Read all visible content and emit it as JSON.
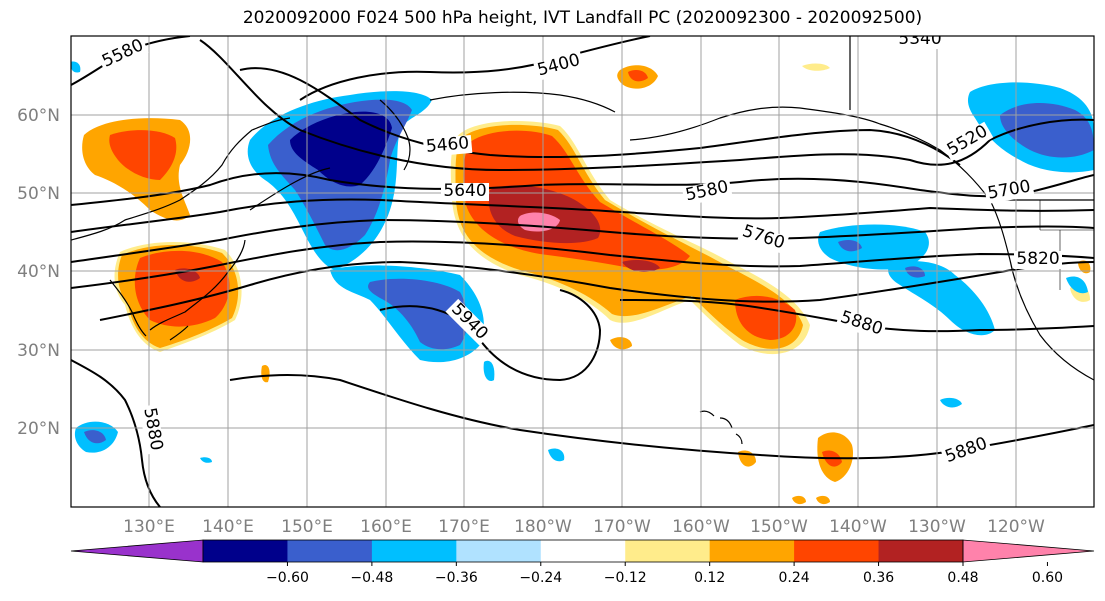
{
  "title": "2020092000 F024 500 hPa height, IVT Landfall PC (2020092300 - 2020092500)",
  "map": {
    "lat_labels": [
      "60°N",
      "50°N",
      "40°N",
      "30°N",
      "20°N"
    ],
    "lon_labels": [
      "130°E",
      "140°E",
      "150°E",
      "160°E",
      "170°E",
      "180°W",
      "170°W",
      "160°W",
      "150°W",
      "140°W",
      "130°W",
      "120°W"
    ],
    "contour_labels": [
      {
        "text": "5580",
        "note": "northwest"
      },
      {
        "text": "5400"
      },
      {
        "text": "5340"
      },
      {
        "text": "5460"
      },
      {
        "text": "5520"
      },
      {
        "text": "5640"
      },
      {
        "text": "5580",
        "note": "pacific"
      },
      {
        "text": "5700"
      },
      {
        "text": "5760"
      },
      {
        "text": "5820"
      },
      {
        "text": "5940"
      },
      {
        "text": "5880",
        "note": "east"
      },
      {
        "text": "5880",
        "note": "west"
      },
      {
        "text": "5880",
        "note": "south"
      }
    ]
  },
  "colorbar": {
    "tick_labels": [
      "−0.60",
      "−0.48",
      "−0.36",
      "−0.24",
      "−0.12",
      "0.12",
      "0.24",
      "0.36",
      "0.48",
      "0.60"
    ],
    "colors": [
      "#9932cc",
      "#00008b",
      "#3a5fcd",
      "#00bfff",
      "#b0e2ff",
      "#ffffff",
      "#ffec8b",
      "#ffa500",
      "#ff4500",
      "#b22222",
      "#ff82ab"
    ]
  }
}
